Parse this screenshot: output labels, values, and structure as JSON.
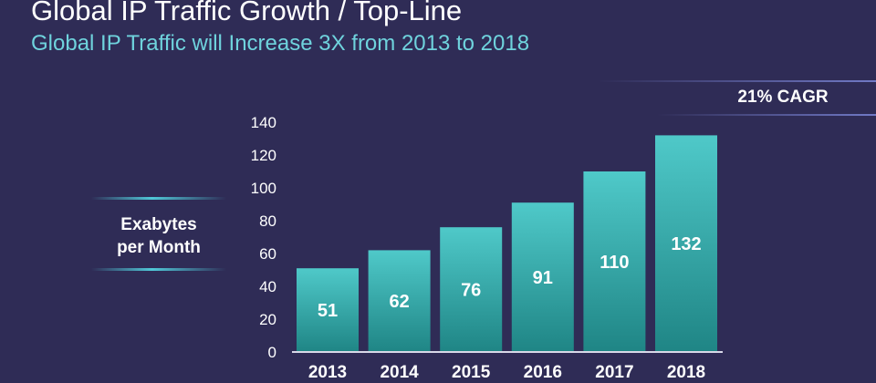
{
  "header": {
    "title": "Global IP Traffic Growth / Top-Line",
    "subtitle": "Global IP Traffic will Increase 3X from 2013 to 2018"
  },
  "cagr_label": "21% CAGR",
  "colors": {
    "background": "#2f2c56",
    "bar_top": "#4fc9c9",
    "bar_bottom": "#1f8585",
    "subtitle": "#6fd3dd"
  },
  "chart_data": {
    "type": "bar",
    "title": "Global IP Traffic Growth / Top-Line",
    "subtitle": "Global IP Traffic will Increase 3X from 2013 to 2018",
    "categories": [
      "2013",
      "2014",
      "2015",
      "2016",
      "2017",
      "2018"
    ],
    "values": [
      51,
      62,
      76,
      91,
      110,
      132
    ],
    "ylabel": "Exabytes per Month",
    "ylabel_lines": [
      "Exabytes",
      "per Month"
    ],
    "xlabel": "",
    "ylim": [
      0,
      140
    ],
    "yticks": [
      0,
      20,
      40,
      60,
      80,
      100,
      120,
      140
    ],
    "annotation": "21% CAGR",
    "grid": false
  }
}
